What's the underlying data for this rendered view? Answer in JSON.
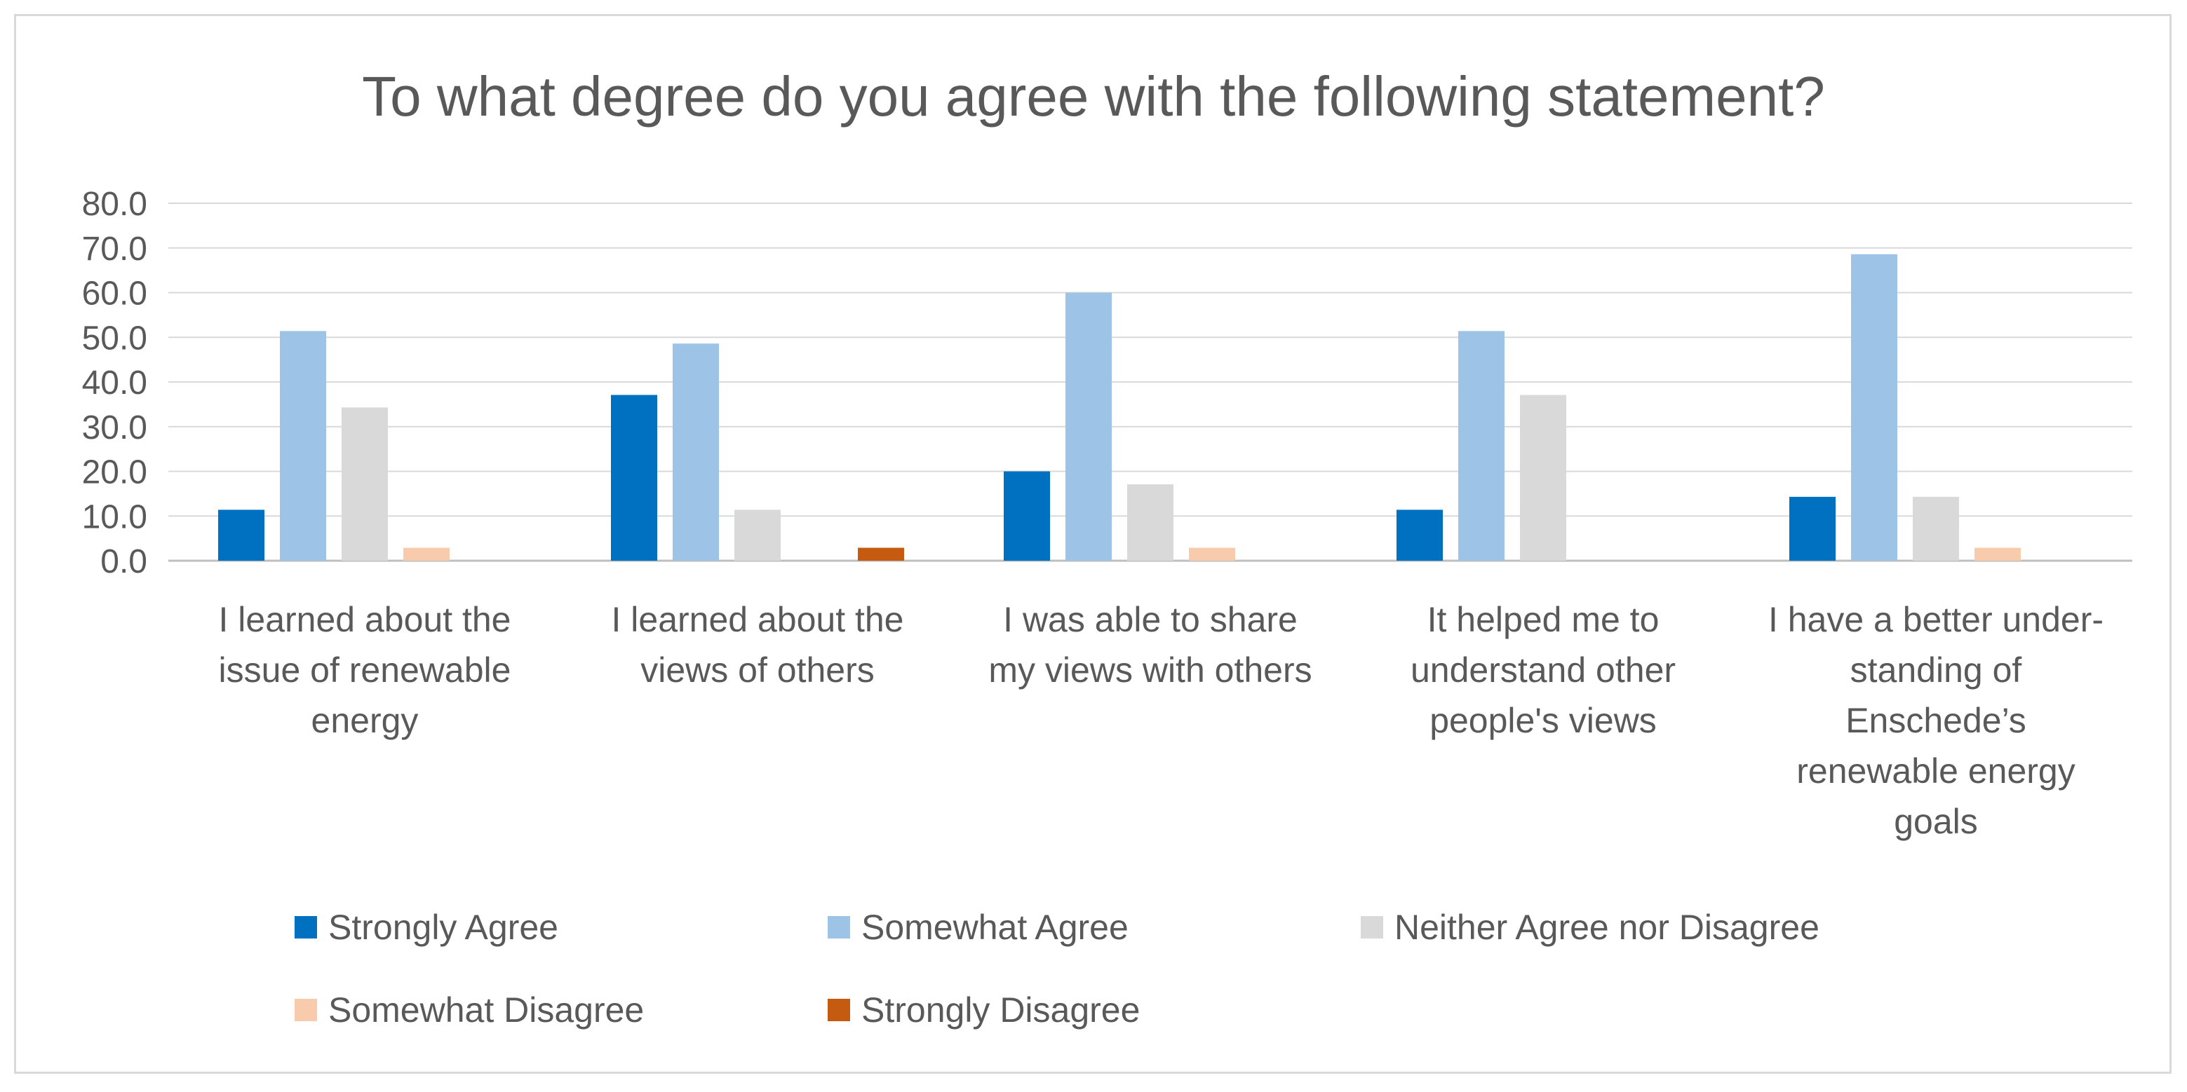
{
  "chart_data": {
    "type": "bar",
    "title": "To what degree do you agree with the following statement?",
    "categories": [
      "I learned about the\nissue of renewable\nenergy",
      "I learned about the\nviews of others",
      "I was able to share\nmy views with others",
      "It helped me to\nunderstand other\npeople's views",
      "I have a better under-\nstanding of\nEnschede’s\nrenewable energy\ngoals"
    ],
    "series": [
      {
        "name": "Strongly Agree",
        "color": "#0070c0",
        "values": [
          11.4,
          37.1,
          20.0,
          11.4,
          14.3
        ]
      },
      {
        "name": "Somewhat Agree",
        "color": "#9dc3e6",
        "values": [
          51.4,
          48.6,
          60.0,
          51.4,
          68.6
        ]
      },
      {
        "name": "Neither Agree nor Disagree",
        "color": "#d9d9d9",
        "values": [
          34.3,
          11.4,
          17.1,
          37.1,
          14.3
        ]
      },
      {
        "name": "Somewhat Disagree",
        "color": "#f8cbad",
        "values": [
          2.9,
          0.0,
          2.9,
          0.0,
          2.9
        ]
      },
      {
        "name": "Strongly Disagree",
        "color": "#c55a11",
        "values": [
          0.0,
          2.9,
          0.0,
          0.0,
          0.0
        ]
      }
    ],
    "ylim": [
      0,
      80
    ],
    "yticks": [
      "0.0",
      "10.0",
      "20.0",
      "30.0",
      "40.0",
      "50.0",
      "60.0",
      "70.0",
      "80.0"
    ],
    "grid": true,
    "legend_position": "bottom"
  }
}
